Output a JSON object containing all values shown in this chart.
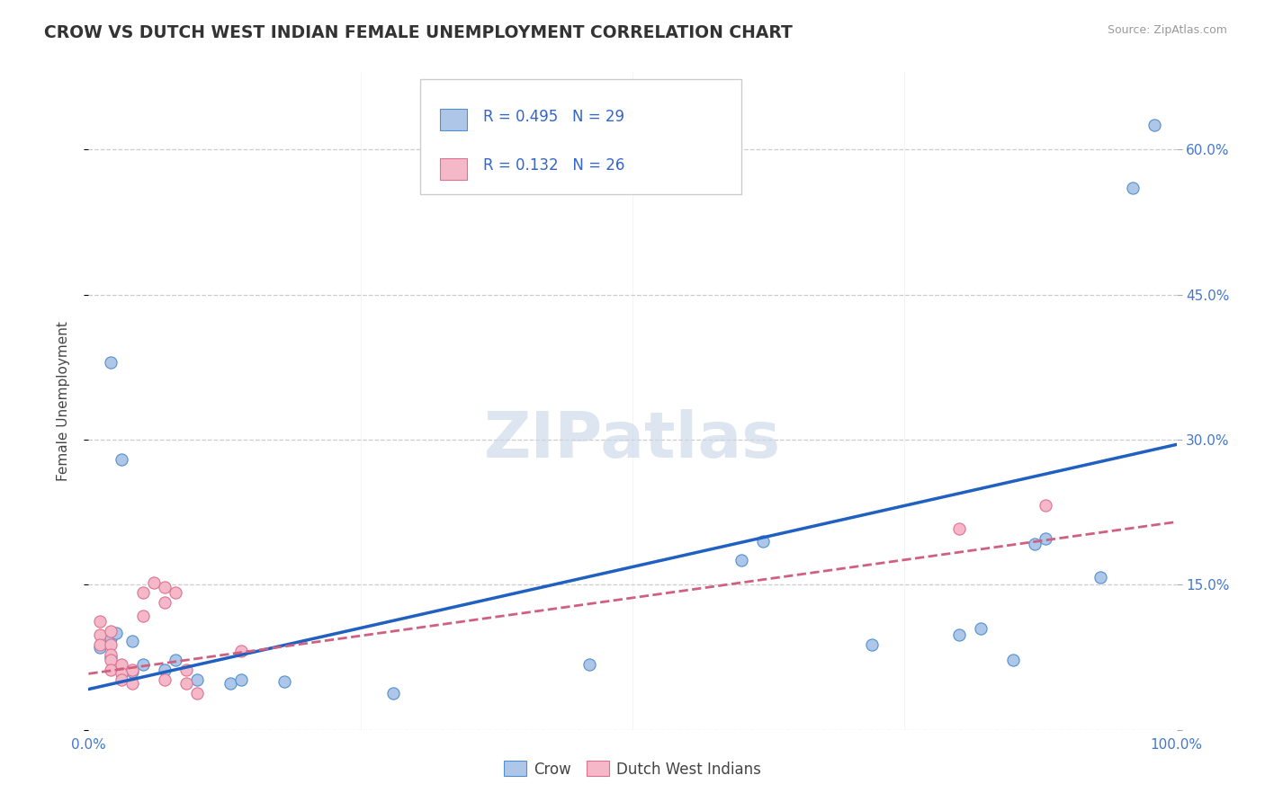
{
  "title": "CROW VS DUTCH WEST INDIAN FEMALE UNEMPLOYMENT CORRELATION CHART",
  "source": "Source: ZipAtlas.com",
  "ylabel": "Female Unemployment",
  "watermark": "ZIPatlas",
  "xlim": [
    0,
    1.0
  ],
  "ylim": [
    0,
    0.68
  ],
  "xticks": [
    0.0,
    0.25,
    0.5,
    0.75,
    1.0
  ],
  "xticklabels": [
    "0.0%",
    "",
    "",
    "",
    "100.0%"
  ],
  "yticks": [
    0.0,
    0.15,
    0.3,
    0.45,
    0.6
  ],
  "yticklabels": [
    "",
    "15.0%",
    "30.0%",
    "45.0%",
    "60.0%"
  ],
  "crow_R": "0.495",
  "crow_N": "29",
  "dwi_R": "0.132",
  "dwi_N": "26",
  "crow_fill_color": "#aec6e8",
  "dwi_fill_color": "#f5b8c8",
  "crow_edge_color": "#5090d0",
  "dwi_edge_color": "#e07090",
  "crow_line_color": "#2060c0",
  "dwi_line_color": "#d06080",
  "legend_text_color": "#3366cc",
  "tick_color": "#4477cc",
  "crow_scatter": [
    [
      0.02,
      0.38
    ],
    [
      0.03,
      0.28
    ],
    [
      0.01,
      0.085
    ],
    [
      0.02,
      0.095
    ],
    [
      0.025,
      0.1
    ],
    [
      0.04,
      0.092
    ],
    [
      0.02,
      0.075
    ],
    [
      0.03,
      0.062
    ],
    [
      0.04,
      0.06
    ],
    [
      0.05,
      0.068
    ],
    [
      0.07,
      0.062
    ],
    [
      0.08,
      0.072
    ],
    [
      0.1,
      0.052
    ],
    [
      0.13,
      0.048
    ],
    [
      0.14,
      0.052
    ],
    [
      0.18,
      0.05
    ],
    [
      0.28,
      0.038
    ],
    [
      0.46,
      0.068
    ],
    [
      0.6,
      0.175
    ],
    [
      0.62,
      0.195
    ],
    [
      0.72,
      0.088
    ],
    [
      0.8,
      0.098
    ],
    [
      0.82,
      0.105
    ],
    [
      0.85,
      0.072
    ],
    [
      0.87,
      0.192
    ],
    [
      0.88,
      0.198
    ],
    [
      0.93,
      0.158
    ],
    [
      0.96,
      0.56
    ],
    [
      0.98,
      0.625
    ]
  ],
  "dwi_scatter": [
    [
      0.01,
      0.112
    ],
    [
      0.01,
      0.098
    ],
    [
      0.01,
      0.088
    ],
    [
      0.02,
      0.102
    ],
    [
      0.02,
      0.088
    ],
    [
      0.02,
      0.078
    ],
    [
      0.02,
      0.072
    ],
    [
      0.02,
      0.062
    ],
    [
      0.03,
      0.068
    ],
    [
      0.03,
      0.058
    ],
    [
      0.03,
      0.052
    ],
    [
      0.04,
      0.062
    ],
    [
      0.04,
      0.048
    ],
    [
      0.05,
      0.142
    ],
    [
      0.05,
      0.118
    ],
    [
      0.06,
      0.152
    ],
    [
      0.07,
      0.148
    ],
    [
      0.07,
      0.132
    ],
    [
      0.07,
      0.052
    ],
    [
      0.08,
      0.142
    ],
    [
      0.09,
      0.062
    ],
    [
      0.09,
      0.048
    ],
    [
      0.1,
      0.038
    ],
    [
      0.14,
      0.082
    ],
    [
      0.8,
      0.208
    ],
    [
      0.88,
      0.232
    ]
  ],
  "crow_trendline": [
    [
      0.0,
      0.042
    ],
    [
      1.0,
      0.295
    ]
  ],
  "dwi_trendline": [
    [
      0.0,
      0.058
    ],
    [
      1.0,
      0.215
    ]
  ],
  "background_color": "#ffffff",
  "grid_color": "#cccccc",
  "title_fontsize": 13.5,
  "label_fontsize": 11,
  "tick_fontsize": 11,
  "legend_fontsize": 12
}
